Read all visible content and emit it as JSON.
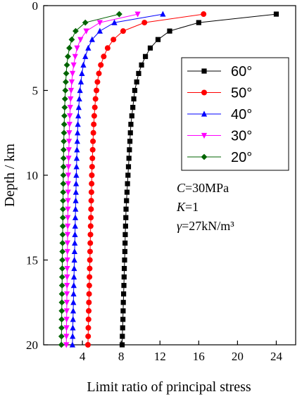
{
  "chart_data": {
    "type": "line",
    "xlabel": "Limit ratio of principal stress",
    "ylabel": "Depth / km",
    "xlim": [
      0,
      26
    ],
    "ylim": [
      0,
      20
    ],
    "y_inverted": true,
    "x_axis_position": "bottom",
    "x_ticks": [
      4,
      8,
      12,
      16,
      20,
      24
    ],
    "y_ticks": [
      0,
      5,
      10,
      15,
      20
    ],
    "grid": false,
    "legend_position": "upper-right",
    "series": [
      {
        "name": "60°",
        "color": "#000000",
        "marker": "square",
        "x": [
          24.0,
          16.0,
          13.0,
          11.8,
          11.0,
          10.5,
          10.1,
          9.8,
          9.6,
          9.4,
          9.3,
          9.2,
          9.1,
          9.0,
          8.95,
          8.9,
          8.85,
          8.8,
          8.75,
          8.7,
          8.65,
          8.6,
          8.55,
          8.5,
          8.48,
          8.45,
          8.42,
          8.4,
          8.38,
          8.35,
          8.32,
          8.3,
          8.28,
          8.25,
          8.22,
          8.2,
          8.18,
          8.15,
          8.12,
          8.1
        ],
        "y": [
          0.5,
          1.0,
          1.5,
          2.0,
          2.5,
          3.0,
          3.5,
          4.0,
          4.5,
          5.0,
          5.5,
          6.0,
          6.5,
          7.0,
          7.5,
          8.0,
          8.5,
          9.0,
          9.5,
          10.0,
          10.5,
          11.0,
          11.5,
          12.0,
          12.5,
          13.0,
          13.5,
          14.0,
          14.5,
          15.0,
          15.5,
          16.0,
          16.5,
          17.0,
          17.5,
          18.0,
          18.5,
          19.0,
          19.5,
          20.0
        ]
      },
      {
        "name": "50°",
        "color": "#ff0000",
        "marker": "circle",
        "x": [
          16.5,
          10.4,
          8.2,
          7.2,
          6.6,
          6.2,
          5.9,
          5.7,
          5.55,
          5.45,
          5.35,
          5.28,
          5.22,
          5.17,
          5.13,
          5.09,
          5.06,
          5.03,
          5.0,
          4.97,
          4.95,
          4.93,
          4.91,
          4.89,
          4.87,
          4.85,
          4.83,
          4.81,
          4.79,
          4.77,
          4.75,
          4.73,
          4.71,
          4.69,
          4.67,
          4.65,
          4.63,
          4.61,
          4.59,
          4.57
        ],
        "y": [
          0.5,
          1.0,
          1.5,
          2.0,
          2.5,
          3.0,
          3.5,
          4.0,
          4.5,
          5.0,
          5.5,
          6.0,
          6.5,
          7.0,
          7.5,
          8.0,
          8.5,
          9.0,
          9.5,
          10.0,
          10.5,
          11.0,
          11.5,
          12.0,
          12.5,
          13.0,
          13.5,
          14.0,
          14.5,
          15.0,
          15.5,
          16.0,
          16.5,
          17.0,
          17.5,
          18.0,
          18.5,
          19.0,
          19.5,
          20.0
        ]
      },
      {
        "name": "40°",
        "color": "#0000ff",
        "marker": "triangle-up",
        "x": [
          12.3,
          7.3,
          5.8,
          5.0,
          4.6,
          4.3,
          4.1,
          3.95,
          3.85,
          3.75,
          3.68,
          3.62,
          3.57,
          3.53,
          3.5,
          3.47,
          3.44,
          3.41,
          3.39,
          3.37,
          3.35,
          3.33,
          3.31,
          3.29,
          3.27,
          3.25,
          3.23,
          3.21,
          3.19,
          3.17,
          3.15,
          3.13,
          3.11,
          3.09,
          3.07,
          3.05,
          3.03,
          3.01,
          2.99,
          2.97
        ],
        "y": [
          0.5,
          1.0,
          1.5,
          2.0,
          2.5,
          3.0,
          3.5,
          4.0,
          4.5,
          5.0,
          5.5,
          6.0,
          6.5,
          7.0,
          7.5,
          8.0,
          8.5,
          9.0,
          9.5,
          10.0,
          10.5,
          11.0,
          11.5,
          12.0,
          12.5,
          13.0,
          13.5,
          14.0,
          14.5,
          15.0,
          15.5,
          16.0,
          16.5,
          17.0,
          17.5,
          18.0,
          18.5,
          19.0,
          19.5,
          20.0
        ]
      },
      {
        "name": "30°",
        "color": "#ff00ff",
        "marker": "triangle-down",
        "x": [
          9.7,
          5.8,
          4.4,
          3.8,
          3.45,
          3.25,
          3.1,
          2.98,
          2.9,
          2.83,
          2.78,
          2.74,
          2.7,
          2.67,
          2.64,
          2.62,
          2.6,
          2.58,
          2.56,
          2.54,
          2.53,
          2.52,
          2.51,
          2.5,
          2.49,
          2.48,
          2.47,
          2.46,
          2.45,
          2.44,
          2.43,
          2.42,
          2.41,
          2.4,
          2.39,
          2.38,
          2.37,
          2.36,
          2.35,
          2.34
        ],
        "y": [
          0.5,
          1.0,
          1.5,
          2.0,
          2.5,
          3.0,
          3.5,
          4.0,
          4.5,
          5.0,
          5.5,
          6.0,
          6.5,
          7.0,
          7.5,
          8.0,
          8.5,
          9.0,
          9.5,
          10.0,
          10.5,
          11.0,
          11.5,
          12.0,
          12.5,
          13.0,
          13.5,
          14.0,
          14.5,
          15.0,
          15.5,
          16.0,
          16.5,
          17.0,
          17.5,
          18.0,
          18.5,
          19.0,
          19.5,
          20.0
        ]
      },
      {
        "name": "20°",
        "color": "#006400",
        "marker": "diamond",
        "x": [
          7.8,
          4.3,
          3.3,
          2.9,
          2.65,
          2.5,
          2.4,
          2.33,
          2.28,
          2.24,
          2.2,
          2.17,
          2.14,
          2.12,
          2.1,
          2.08,
          2.06,
          2.05,
          2.04,
          2.03,
          2.02,
          2.01,
          2.0,
          1.99,
          1.98,
          1.97,
          1.96,
          1.95,
          1.94,
          1.93,
          1.92,
          1.91,
          1.9,
          1.89,
          1.88,
          1.87,
          1.86,
          1.85,
          1.84,
          1.83
        ],
        "y": [
          0.5,
          1.0,
          1.5,
          2.0,
          2.5,
          3.0,
          3.5,
          4.0,
          4.5,
          5.0,
          5.5,
          6.0,
          6.5,
          7.0,
          7.5,
          8.0,
          8.5,
          9.0,
          9.5,
          10.0,
          10.5,
          11.0,
          11.5,
          12.0,
          12.5,
          13.0,
          13.5,
          14.0,
          14.5,
          15.0,
          15.5,
          16.0,
          16.5,
          17.0,
          17.5,
          18.0,
          18.5,
          19.0,
          19.5,
          20.0
        ]
      }
    ],
    "annotations": [
      {
        "italic": "C",
        "text": "=30MPa"
      },
      {
        "italic": "K",
        "text": "=1"
      },
      {
        "italic": "γ",
        "text": "=27kN/m³"
      }
    ]
  }
}
